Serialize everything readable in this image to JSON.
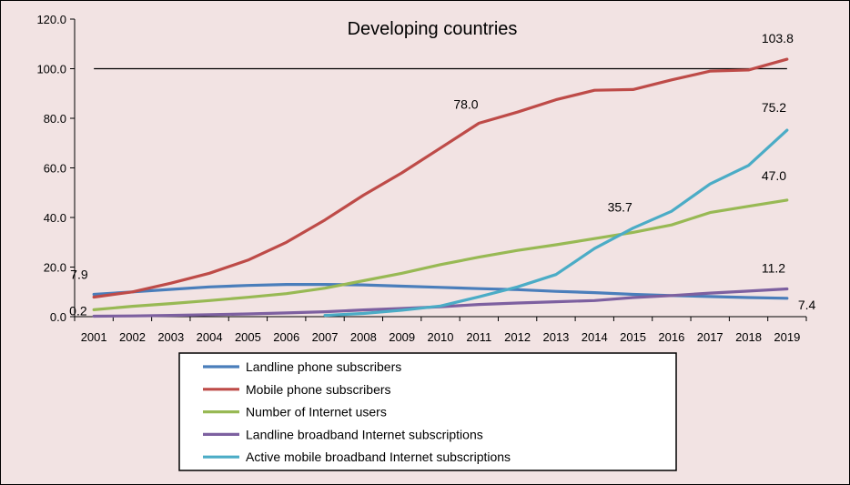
{
  "chart_data": {
    "type": "line",
    "title": "Developing countries",
    "xlabel": "",
    "ylabel": "",
    "ylim": [
      0,
      120
    ],
    "yticks": [
      "0.0",
      "20.0",
      "40.0",
      "60.0",
      "80.0",
      "100.0",
      "120.0"
    ],
    "reference_line": 100,
    "x": [
      "2001",
      "2002",
      "2003",
      "2004",
      "2005",
      "2006",
      "2007",
      "2008",
      "2009",
      "2010",
      "2011",
      "2012",
      "2013",
      "2014",
      "2015",
      "2016",
      "2017",
      "2018",
      "2019"
    ],
    "series": [
      {
        "name": "Landline phone subscribers",
        "color": "#4a7ebb",
        "values": [
          9.0,
          10.0,
          11.0,
          12.0,
          12.6,
          13.0,
          13.0,
          12.8,
          12.3,
          11.8,
          11.3,
          10.9,
          10.2,
          9.7,
          9.0,
          8.5,
          8.1,
          7.7,
          7.4
        ]
      },
      {
        "name": "Mobile phone subscribers",
        "color": "#be4b48",
        "values": [
          7.9,
          10.0,
          13.5,
          17.5,
          22.8,
          30.0,
          39.0,
          49.0,
          58.0,
          68.0,
          78.0,
          82.5,
          87.5,
          91.3,
          91.6,
          95.5,
          99.0,
          99.5,
          103.8
        ]
      },
      {
        "name": "Number of Internet users",
        "color": "#98b954",
        "values": [
          2.8,
          4.2,
          5.3,
          6.5,
          7.8,
          9.3,
          11.5,
          14.5,
          17.5,
          21.0,
          24.0,
          26.7,
          29.0,
          31.5,
          34.0,
          37.0,
          42.0,
          44.5,
          47.0
        ]
      },
      {
        "name": "Landline broadband Internet subscriptions",
        "color": "#7d60a0",
        "values": [
          0.2,
          0.3,
          0.5,
          0.8,
          1.1,
          1.5,
          2.0,
          2.7,
          3.3,
          4.0,
          4.9,
          5.5,
          6.0,
          6.5,
          7.7,
          8.5,
          9.5,
          10.3,
          11.2
        ]
      },
      {
        "name": "Active mobile broadband Internet subscriptions",
        "color": "#4bacc6",
        "values": [
          null,
          null,
          null,
          null,
          null,
          null,
          0.5,
          1.3,
          2.6,
          4.3,
          8.0,
          12.0,
          17.0,
          27.5,
          35.7,
          42.5,
          53.5,
          61.0,
          75.2
        ]
      }
    ],
    "data_labels": [
      {
        "text": "103.8",
        "series": 1,
        "index": 18
      },
      {
        "text": "78.0",
        "series": 1,
        "index": 10
      },
      {
        "text": "75.2",
        "series": 4,
        "index": 18
      },
      {
        "text": "47.0",
        "series": 2,
        "index": 18
      },
      {
        "text": "35.7",
        "series": 4,
        "index": 14
      },
      {
        "text": "11.2",
        "series": 3,
        "index": 18
      },
      {
        "text": "7.4",
        "series": 0,
        "index": 18
      },
      {
        "text": "7.9",
        "series": 1,
        "index": 0
      },
      {
        "text": "0.2",
        "series": 3,
        "index": 0
      }
    ]
  }
}
